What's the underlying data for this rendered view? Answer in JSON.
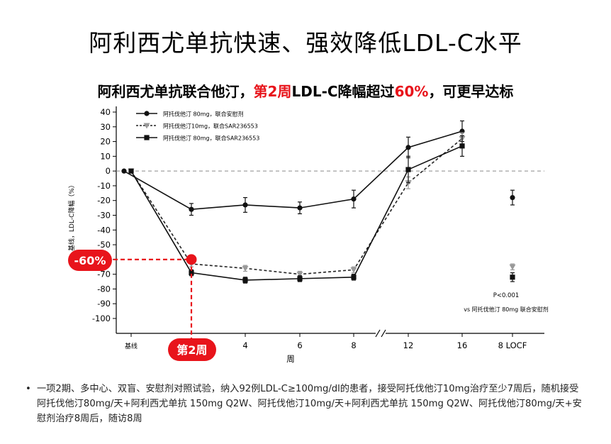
{
  "title": "阿利西尤单抗快速、强效降低LDL-C水平",
  "subtitle": {
    "part1": "阿利西尤单抗联合他汀，",
    "part2": "第2周",
    "part3": "LDL-C降幅超过",
    "part4": "60%",
    "part5": "，可更早达标"
  },
  "chart_data": {
    "type": "line",
    "ylabel": "基线，LDL-C降幅（%）",
    "xlabel": "周",
    "ylim": [
      -100,
      40
    ],
    "y_ticks": [
      "40",
      "30",
      "20",
      "10",
      "0",
      "-10",
      "-20",
      "-30",
      "-40",
      "-50",
      "-60",
      "-70",
      "-80",
      "-90",
      "-100"
    ],
    "x_ticks": [
      "基线",
      "4",
      "6",
      "8",
      "12",
      "16"
    ],
    "locf_label": "8 LOCF",
    "reference_line": 0,
    "series": [
      {
        "name": "阿托伐他汀 80mg，联合安慰剂",
        "marker": "circle",
        "line_style": "solid",
        "color": "#111111",
        "points": [
          {
            "week": 0,
            "value": 0,
            "err": 0
          },
          {
            "week": 2,
            "value": -26,
            "err": 4
          },
          {
            "week": 4,
            "value": -23,
            "err": 5
          },
          {
            "week": 6,
            "value": -25,
            "err": 4
          },
          {
            "week": 8,
            "value": -19,
            "err": 6
          },
          {
            "week": 12,
            "value": 16,
            "err": 7
          },
          {
            "week": 16,
            "value": 27,
            "err": 7
          }
        ],
        "locf": {
          "value": -18,
          "err": 5
        }
      },
      {
        "name": "阿托伐他汀10mg，联合SAR236553",
        "marker": "triangle-down",
        "line_style": "dotted",
        "color": "#999999",
        "points": [
          {
            "week": 0,
            "value": 0,
            "err": 0
          },
          {
            "week": 2,
            "value": -63,
            "err": 2
          },
          {
            "week": 4,
            "value": -66,
            "err": 2
          },
          {
            "week": 6,
            "value": -70,
            "err": 2
          },
          {
            "week": 8,
            "value": -67,
            "err": 2
          },
          {
            "week": 12,
            "value": -8,
            "err": 4
          },
          {
            "week": 16,
            "value": 22,
            "err": 4
          }
        ],
        "locf": {
          "value": -65,
          "err": 2
        }
      },
      {
        "name": "阿托伐他汀 80mg，联合SAR236553",
        "marker": "square",
        "line_style": "solid",
        "color": "#111111",
        "points": [
          {
            "week": 0,
            "value": 0,
            "err": 0
          },
          {
            "week": 2,
            "value": -69,
            "err": 2
          },
          {
            "week": 4,
            "value": -74,
            "err": 2
          },
          {
            "week": 6,
            "value": -73,
            "err": 2
          },
          {
            "week": 8,
            "value": -72,
            "err": 2
          },
          {
            "week": 12,
            "value": 1,
            "err": 9
          },
          {
            "week": 16,
            "value": 17,
            "err": 7
          }
        ],
        "locf": {
          "value": -72,
          "err": 3
        }
      }
    ],
    "annotations": {
      "pct_label": "-60%",
      "week_label": "第2周",
      "p_value": "P<0.001",
      "p_note": "vs 阿托伐他汀 80mg 联合安慰剂"
    },
    "colors": {
      "highlight": "#e8141b"
    }
  },
  "footnote": {
    "bullet": "•",
    "text": "一项2期、多中心、双盲、安慰剂对照试验，纳入92例LDL-C≥100mg/dl的患者，接受阿托伐他汀10mg治疗至少7周后，随机接受阿托伐他汀80mg/天+阿利西尤单抗 150mg Q2W、阿托伐他汀10mg/天+阿利西尤单抗 150mg Q2W、阿托伐他汀80mg/天+安慰剂治疗8周后，随访8周"
  }
}
